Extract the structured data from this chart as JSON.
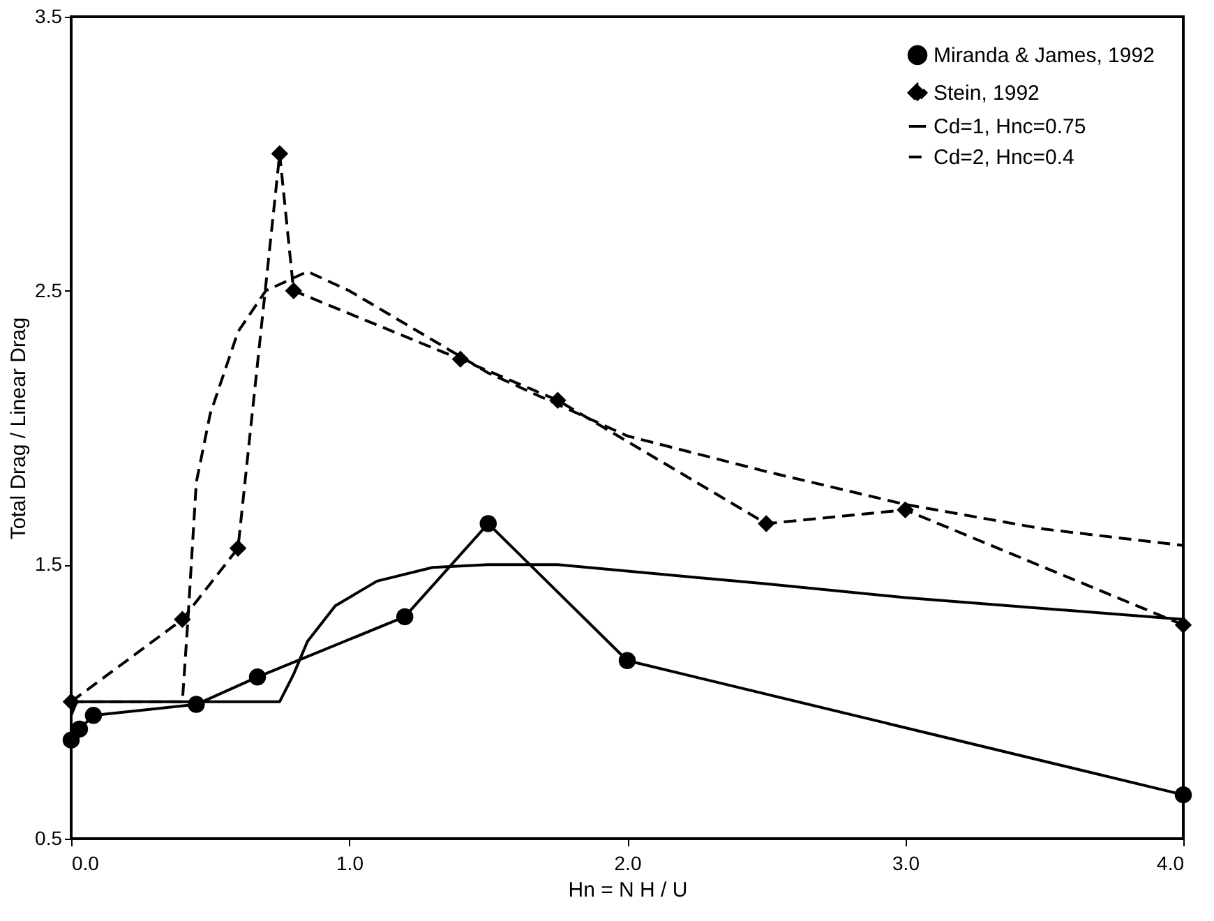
{
  "chart_data": {
    "type": "line",
    "xlabel": "Hn = N H / U",
    "ylabel": "Total Drag / Linear Drag",
    "xlim": [
      0,
      4
    ],
    "ylim": [
      0.5,
      3.5
    ],
    "xticks": [
      {
        "value": 0,
        "label": "0.0"
      },
      {
        "value": 1,
        "label": "1.0"
      },
      {
        "value": 2,
        "label": "2.0"
      },
      {
        "value": 3,
        "label": "3.0"
      },
      {
        "value": 4,
        "label": "4.0"
      }
    ],
    "yticks": [
      0.5,
      1.5,
      2.5,
      3.5
    ],
    "grid": false,
    "legend": "top right",
    "series": [
      {
        "name": "Miranda & James, 1992",
        "color": "#000000",
        "marker": "circle",
        "line_style": "solid",
        "x": [
          0,
          0.03,
          0.08,
          0.45,
          0.67,
          1.2,
          1.5,
          2.0,
          4.0
        ],
        "values": [
          0.86,
          0.9,
          0.95,
          0.99,
          1.09,
          1.31,
          1.65,
          1.15,
          0.66
        ]
      },
      {
        "name": "Stein, 1992",
        "color": "#000000",
        "marker": "diamond",
        "line_style": "dashed",
        "x": [
          0,
          0.4,
          0.6,
          0.75,
          0.8,
          1.4,
          1.75,
          2.5,
          3.0,
          4.0
        ],
        "values": [
          1.0,
          1.3,
          1.56,
          3.0,
          2.5,
          2.25,
          2.1,
          1.65,
          1.7,
          1.28
        ]
      },
      {
        "name": "Cd=1, Hnc=0.75",
        "color": "#000000",
        "marker": "none",
        "line_style": "solid",
        "x": [
          0,
          0.02,
          0.75,
          0.8,
          0.85,
          0.95,
          1.1,
          1.3,
          1.5,
          1.75,
          2.5,
          3.0,
          4.0
        ],
        "values": [
          0.95,
          1.0,
          1.0,
          1.1,
          1.22,
          1.35,
          1.44,
          1.49,
          1.5,
          1.5,
          1.43,
          1.38,
          1.3
        ]
      },
      {
        "name": "Cd=2, Hnc=0.4",
        "color": "#000000",
        "marker": "none",
        "line_style": "dashed",
        "x": [
          0,
          0.4,
          0.42,
          0.45,
          0.5,
          0.6,
          0.7,
          0.85,
          1.0,
          1.5,
          2.0,
          2.5,
          3.0,
          3.5,
          4.0
        ],
        "values": [
          1.0,
          1.0,
          1.3,
          1.8,
          2.05,
          2.35,
          2.5,
          2.57,
          2.5,
          2.2,
          1.97,
          1.84,
          1.72,
          1.63,
          1.57
        ]
      }
    ]
  }
}
